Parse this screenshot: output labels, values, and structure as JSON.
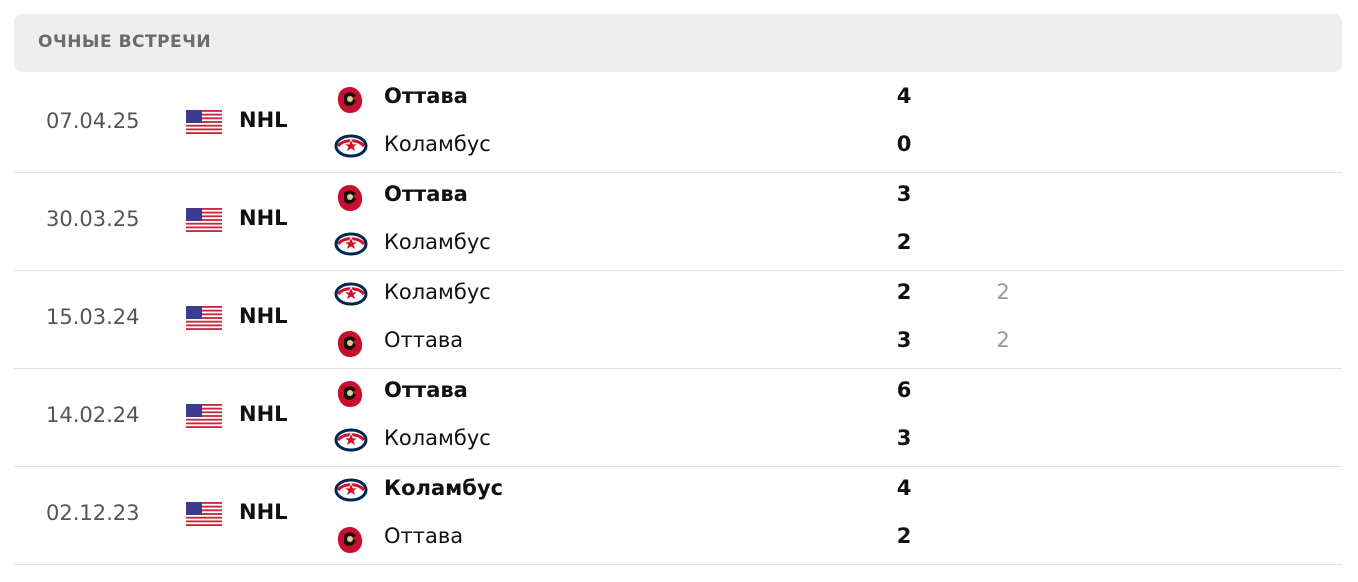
{
  "header": {
    "title": "ОЧНЫЕ ВСТРЕЧИ"
  },
  "matches": [
    {
      "date": "07.04.25",
      "league": "NHL",
      "teams": [
        {
          "name": "Оттава",
          "logo": "ottawa",
          "score": 4,
          "bold": true
        },
        {
          "name": "Коламбус",
          "logo": "columbus",
          "score": 0,
          "bold": false
        }
      ]
    },
    {
      "date": "30.03.25",
      "league": "NHL",
      "teams": [
        {
          "name": "Оттава",
          "logo": "ottawa",
          "score": 3,
          "bold": true
        },
        {
          "name": "Коламбус",
          "logo": "columbus",
          "score": 2,
          "bold": false
        }
      ]
    },
    {
      "date": "15.03.24",
      "league": "NHL",
      "teams": [
        {
          "name": "Коламбус",
          "logo": "columbus",
          "score": 2,
          "bold": false,
          "extra_score": 2
        },
        {
          "name": "Оттава",
          "logo": "ottawa",
          "score": 3,
          "bold": false,
          "extra_score": 2
        }
      ]
    },
    {
      "date": "14.02.24",
      "league": "NHL",
      "teams": [
        {
          "name": "Оттава",
          "logo": "ottawa",
          "score": 6,
          "bold": true
        },
        {
          "name": "Коламбус",
          "logo": "columbus",
          "score": 3,
          "bold": false
        }
      ]
    },
    {
      "date": "02.12.23",
      "league": "NHL",
      "teams": [
        {
          "name": "Коламбус",
          "logo": "columbus",
          "score": 4,
          "bold": true
        },
        {
          "name": "Оттава",
          "logo": "ottawa",
          "score": 2,
          "bold": false
        }
      ]
    }
  ]
}
